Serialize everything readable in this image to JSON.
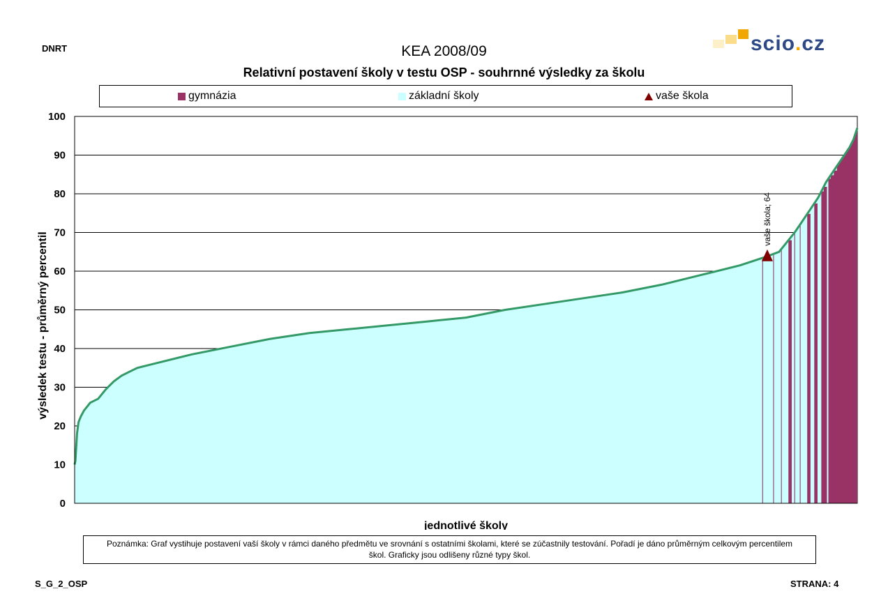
{
  "header": {
    "left_code": "DNRT",
    "main_title": "KEA 2008/09",
    "sub_title": "Relativní postavení školy v testu OSP - souhrnné výsledky za školu"
  },
  "logo": {
    "name": "scio",
    "dot": ".",
    "tld": "cz",
    "color": "#2e4a86",
    "accent": "#f0a800"
  },
  "legend": [
    {
      "label": "gymnázia",
      "color": "#993366",
      "marker": "square"
    },
    {
      "label": "základní školy",
      "color": "#ccffff",
      "marker": "square"
    },
    {
      "label": "vaše škola",
      "color": "#800000",
      "marker": "triangle"
    }
  ],
  "chart_data": {
    "type": "area",
    "ylabel": "výsledek testu - průměrný percentil",
    "xlabel": "jednotlivé školy",
    "ylim": [
      0,
      100
    ],
    "yticks": [
      0,
      10,
      20,
      30,
      40,
      50,
      60,
      70,
      80,
      90,
      100
    ],
    "grid": true,
    "colors": {
      "zakladni": "#ccffff",
      "gymnazia": "#993366",
      "line": "#339966",
      "marker": "#800000"
    },
    "curve": {
      "x_fraction": [
        0,
        0.001,
        0.003,
        0.005,
        0.008,
        0.012,
        0.02,
        0.03,
        0.04,
        0.05,
        0.06,
        0.07,
        0.08,
        0.1,
        0.15,
        0.2,
        0.25,
        0.3,
        0.35,
        0.4,
        0.45,
        0.5,
        0.55,
        0.6,
        0.65,
        0.7,
        0.75,
        0.8,
        0.85,
        0.88,
        0.9,
        0.91,
        0.92,
        0.93,
        0.94,
        0.95,
        0.96,
        0.97,
        0.98,
        0.99,
        0.995,
        1.0
      ],
      "y": [
        10,
        11,
        18,
        21,
        22.5,
        24,
        26,
        27,
        29.5,
        31.5,
        33,
        34,
        35,
        36,
        38.5,
        40.5,
        42.5,
        44,
        45,
        46,
        47,
        48,
        50,
        51.5,
        53,
        54.5,
        56.5,
        59,
        61.5,
        63.5,
        65,
        67.5,
        70,
        73,
        76,
        79,
        83,
        86,
        89,
        92,
        94,
        97
      ]
    },
    "your_school": {
      "value": 64,
      "x_fraction": 0.885,
      "label": "vaše škola; 64"
    },
    "gymnazia_x_fraction": [
      0.912,
      0.936,
      0.945,
      0.954,
      0.957,
      0.963,
      0.966,
      0.97
    ]
  },
  "note": "Poznámka: Graf vystihuje postavení vaší školy v rámci daného předmětu ve srovnání s ostatními školami, které se zúčastnily testování. Pořadí je dáno průměrným celkovým percentilem škol. Graficky jsou odlišeny různé typy škol.",
  "footer": {
    "left": "S_G_2_OSP",
    "right": "STRANA: 4"
  }
}
